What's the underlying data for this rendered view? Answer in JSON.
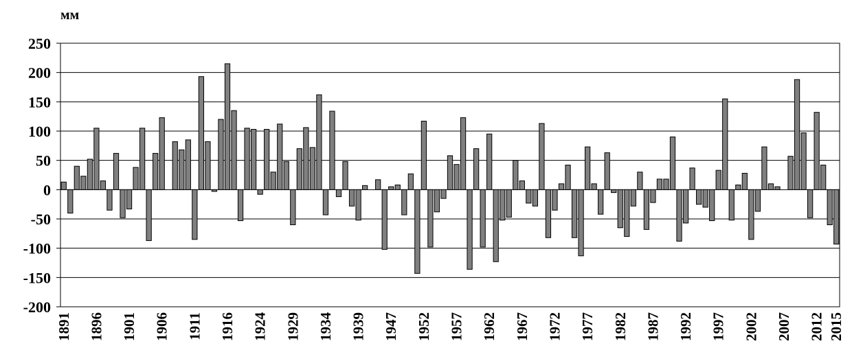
{
  "chart_data": {
    "type": "bar",
    "y_label": "мм",
    "categories": [
      "1891",
      null,
      null,
      null,
      null,
      "1896",
      null,
      null,
      null,
      null,
      "1901",
      null,
      null,
      null,
      null,
      "1906",
      null,
      null,
      null,
      null,
      "1911",
      null,
      null,
      null,
      null,
      "1916",
      null,
      null,
      null,
      null,
      "1924",
      null,
      null,
      null,
      null,
      "1929",
      null,
      null,
      null,
      null,
      "1934",
      null,
      null,
      null,
      null,
      "1939",
      null,
      null,
      null,
      null,
      "1947",
      null,
      null,
      null,
      null,
      "1952",
      null,
      null,
      null,
      null,
      "1957",
      null,
      null,
      null,
      null,
      "1962",
      null,
      null,
      null,
      null,
      "1967",
      null,
      null,
      null,
      null,
      "1972",
      null,
      null,
      null,
      null,
      "1977",
      null,
      null,
      null,
      null,
      "1982",
      null,
      null,
      null,
      null,
      "1987",
      null,
      null,
      null,
      null,
      "1992",
      null,
      null,
      null,
      null,
      "1997",
      null,
      null,
      null,
      null,
      "2002",
      null,
      null,
      null,
      null,
      "2007",
      null,
      null,
      null,
      null,
      "2012",
      null,
      null,
      "2015"
    ],
    "values": [
      13,
      -40,
      40,
      23,
      52,
      105,
      15,
      -35,
      62,
      -48,
      -33,
      38,
      105,
      -87,
      62,
      123,
      null,
      82,
      68,
      85,
      -85,
      193,
      82,
      -3,
      120,
      215,
      135,
      -53,
      105,
      103,
      -8,
      103,
      30,
      112,
      48,
      -60,
      70,
      106,
      72,
      162,
      -43,
      134,
      -12,
      48,
      -28,
      -52,
      7,
      null,
      17,
      -102,
      5,
      8,
      -43,
      27,
      -143,
      117,
      -98,
      -38,
      -15,
      58,
      43,
      123,
      -136,
      70,
      -98,
      95,
      -123,
      -52,
      -47,
      50,
      15,
      -23,
      -28,
      113,
      -82,
      -35,
      10,
      42,
      -82,
      -113,
      73,
      10,
      -42,
      63,
      -5,
      -65,
      -80,
      -28,
      30,
      -68,
      -22,
      18,
      18,
      90,
      -88,
      -57,
      37,
      -25,
      -30,
      -53,
      33,
      155,
      -52,
      8,
      28,
      -85,
      -37,
      73,
      10,
      5,
      null,
      57,
      188,
      97,
      -48,
      132,
      42,
      -60,
      -93
    ],
    "color": "#808080",
    "ylim": [
      -200,
      250
    ],
    "yticks": [
      -200,
      -150,
      -100,
      -50,
      0,
      50,
      100,
      150,
      200,
      250
    ],
    "grid": true
  }
}
